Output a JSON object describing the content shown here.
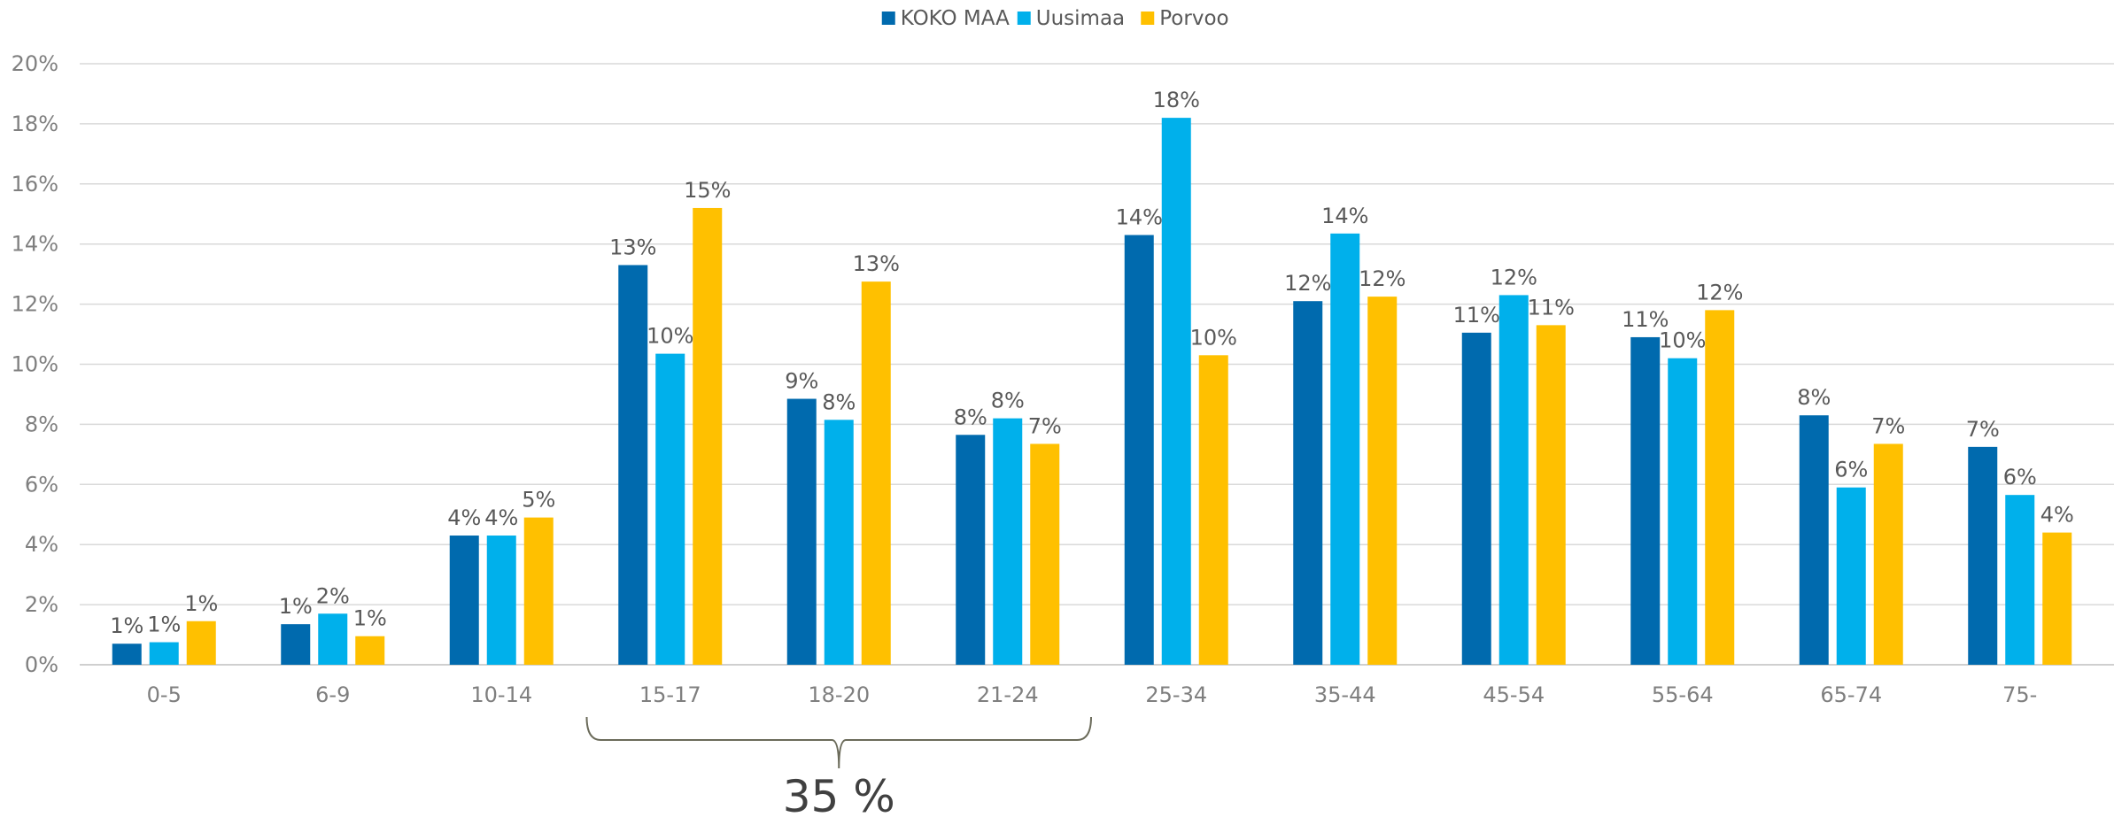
{
  "chart_data": {
    "type": "bar",
    "title": "",
    "xlabel": "",
    "ylabel": "",
    "ylim": [
      0,
      20
    ],
    "yticks": [
      "0%",
      "2%",
      "4%",
      "6%",
      "8%",
      "10%",
      "12%",
      "14%",
      "16%",
      "18%",
      "20%"
    ],
    "grid": "horizontal",
    "legend_position": "top",
    "categories": [
      "0-5",
      "6-9",
      "10-14",
      "15-17",
      "18-20",
      "21-24",
      "25-34",
      "35-44",
      "45-54",
      "55-64",
      "65-74",
      "75-"
    ],
    "series": [
      {
        "name": "KOKO MAA",
        "color": "#006aae",
        "values": [
          0.7,
          1.35,
          4.3,
          13.3,
          8.85,
          7.65,
          14.3,
          12.1,
          11.05,
          10.9,
          8.3,
          7.25
        ],
        "labels": [
          "1%",
          "1%",
          "4%",
          "13%",
          "9%",
          "8%",
          "14%",
          "12%",
          "11%",
          "11%",
          "8%",
          "7%"
        ]
      },
      {
        "name": "Uusimaa",
        "color": "#00b0eb",
        "values": [
          0.75,
          1.7,
          4.3,
          10.35,
          8.15,
          8.2,
          18.2,
          14.35,
          12.3,
          10.2,
          5.9,
          5.65
        ],
        "labels": [
          "1%",
          "2%",
          "4%",
          "10%",
          "8%",
          "8%",
          "18%",
          "14%",
          "12%",
          "10%",
          "6%",
          "6%"
        ]
      },
      {
        "name": "Porvoo",
        "color": "#ffc000",
        "values": [
          1.45,
          0.95,
          4.9,
          15.2,
          12.75,
          7.35,
          10.3,
          12.25,
          11.3,
          11.8,
          7.35,
          4.4
        ],
        "labels": [
          "1%",
          "1%",
          "5%",
          "15%",
          "13%",
          "7%",
          "10%",
          "12%",
          "11%",
          "12%",
          "7%",
          "4%"
        ]
      }
    ],
    "annotation": {
      "text": "35 %",
      "from_category": "15-17",
      "to_category": "21-24"
    }
  }
}
